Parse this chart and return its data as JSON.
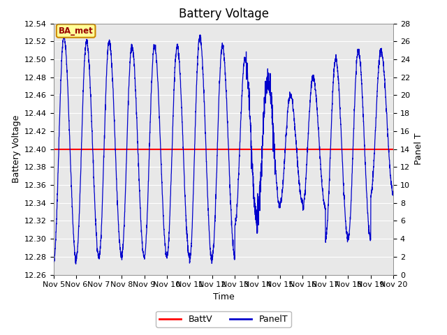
{
  "title": "Battery Voltage",
  "xlabel": "Time",
  "ylabel_left": "Battery Voltage",
  "ylabel_right": "Panel T",
  "ylim_left": [
    12.26,
    12.54
  ],
  "ylim_right": [
    0,
    28
  ],
  "xlim": [
    0,
    15
  ],
  "x_tick_labels": [
    "Nov 5",
    "Nov 6",
    "Nov 7",
    "Nov 8",
    "Nov 9",
    "Nov 10",
    "Nov 11",
    "Nov 12",
    "Nov 13",
    "Nov 14",
    "Nov 15",
    "Nov 16",
    "Nov 17",
    "Nov 18",
    "Nov 19",
    "Nov 20"
  ],
  "batt_v_value": 12.4,
  "batt_v_color": "#ff0000",
  "panel_t_color": "#0000cc",
  "fig_bg_color": "#ffffff",
  "plot_bg_color": "#e8e8e8",
  "grid_color": "#ffffff",
  "label_box_facecolor": "#ffff99",
  "label_box_edgecolor": "#cc8800",
  "label_text": "BA_met",
  "label_text_color": "#990000",
  "legend_labels": [
    "BattV",
    "PanelT"
  ],
  "title_fontsize": 12,
  "axis_label_fontsize": 9,
  "tick_fontsize": 8,
  "legend_fontsize": 9,
  "peaks": [
    26.5,
    26.0,
    26.0,
    25.5,
    25.5,
    25.5,
    26.5,
    25.5,
    24.0,
    22.0,
    20.0,
    22.0,
    24.0,
    25.0,
    25.0
  ],
  "troughs": [
    1.5,
    2.0,
    2.0,
    2.0,
    2.0,
    2.0,
    1.5,
    2.0,
    5.5,
    7.5,
    8.0,
    7.5,
    4.0,
    4.0,
    9.0
  ],
  "rise_sharpness": 6.0,
  "fall_sharpness": 2.5,
  "noise_std": 0.2
}
